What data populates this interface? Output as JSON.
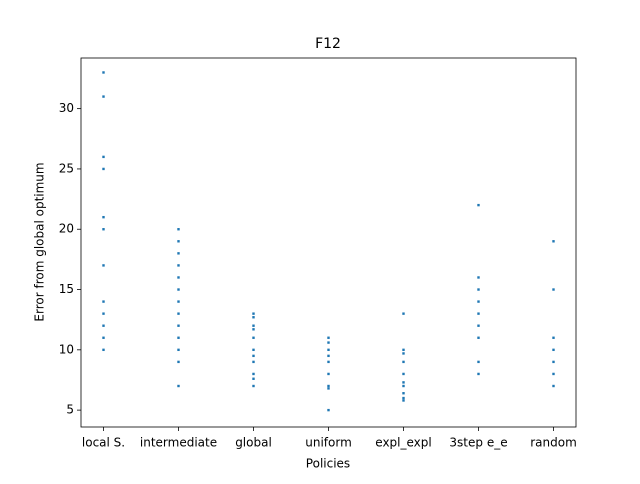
{
  "chart_data": {
    "type": "strip",
    "title": "F12",
    "x_label": "Policies",
    "y_label": "Error from global optimum",
    "categories": [
      "local S.",
      "intermediate",
      "global",
      "uniform",
      "expl_expl",
      "3step e_e",
      "random"
    ],
    "values": [
      [
        33,
        31,
        26,
        25,
        21,
        20,
        17,
        14,
        13,
        12,
        11,
        10
      ],
      [
        20,
        19,
        18,
        17,
        16,
        15,
        14,
        13,
        12,
        11,
        10,
        9,
        7
      ],
      [
        13,
        12.7,
        12,
        11.7,
        11,
        10,
        9.5,
        9,
        8,
        7.6,
        7
      ],
      [
        11,
        10.6,
        10,
        9.5,
        9,
        8,
        7,
        6.8,
        5
      ],
      [
        13,
        10,
        9.7,
        9,
        8,
        7.3,
        7,
        6.4,
        6,
        5.8
      ],
      [
        22,
        16,
        15,
        14,
        13,
        12,
        11,
        9,
        8
      ],
      [
        19,
        15,
        11,
        10,
        9,
        8,
        7
      ]
    ],
    "color": "#1f77b4",
    "ylim": [
      3.6,
      34.2
    ],
    "yticks": [
      5,
      10,
      15,
      20,
      25,
      30
    ],
    "grid": false
  }
}
